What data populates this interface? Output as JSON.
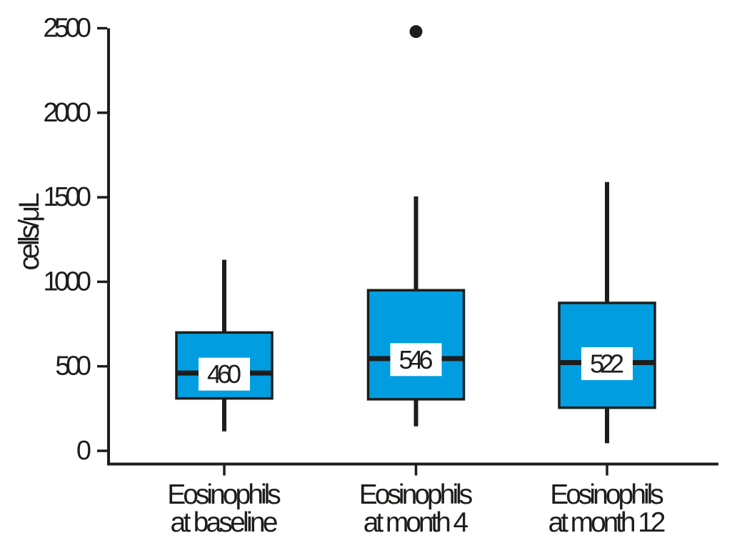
{
  "figure": {
    "background": "#ffffff",
    "ink_color": "#1d1d1b",
    "box_fill": "#009ee0",
    "median_label_bg": "#ffffff"
  },
  "chart_data": {
    "type": "box",
    "title": "",
    "xlabel": "",
    "ylabel": "cells/μL",
    "ylim": [
      0,
      2500
    ],
    "yticks": [
      0,
      500,
      1000,
      1500,
      2000,
      2500
    ],
    "ytick_labels": [
      "0",
      "500",
      "1000",
      "1500",
      "2000",
      "2500"
    ],
    "grid": false,
    "legend": "none",
    "categories": [
      "Eosinophils at baseline",
      "Eosinophils at month 4",
      "Eosinophils at month 12"
    ],
    "category_lines": [
      [
        "Eosinophils",
        "at baseline"
      ],
      [
        "Eosinophils",
        "at month 4"
      ],
      [
        "Eosinophils",
        "at month 12"
      ]
    ],
    "series": [
      {
        "name": "Eosinophils at baseline",
        "whisker_low": 115,
        "q1": 310,
        "median": 460,
        "q3": 700,
        "whisker_high": 1130,
        "outliers": [],
        "median_label": "460"
      },
      {
        "name": "Eosinophils at month 4",
        "whisker_low": 145,
        "q1": 305,
        "median": 546,
        "q3": 950,
        "whisker_high": 1505,
        "outliers": [
          2480
        ],
        "median_label": "546"
      },
      {
        "name": "Eosinophils at month 12",
        "whisker_low": 45,
        "q1": 255,
        "median": 522,
        "q3": 875,
        "whisker_high": 1590,
        "outliers": [],
        "median_label": "522"
      }
    ]
  }
}
